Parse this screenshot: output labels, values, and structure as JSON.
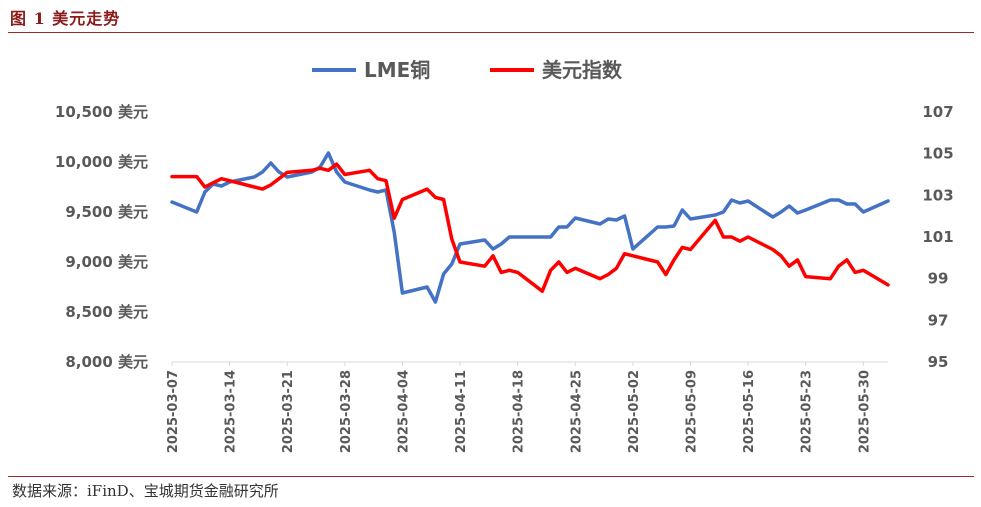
{
  "figure": {
    "title": "图 1 美元走势",
    "source": "数据来源：iFinD、宝城期货金融研究所"
  },
  "chart_data": {
    "type": "line",
    "legend_position": "top-center",
    "grid": false,
    "y_left": {
      "ylim": [
        8000,
        10500
      ],
      "ticks": [
        8000,
        8500,
        9000,
        9500,
        10000,
        10500
      ],
      "tick_labels": [
        "8,000 美元",
        "8,500 美元",
        "9,000 美元",
        "9,500 美元",
        "10,000 美元",
        "10,500 美元"
      ]
    },
    "y_right": {
      "ylim": [
        95,
        107
      ],
      "ticks": [
        95,
        97,
        99,
        101,
        103,
        105,
        107
      ],
      "tick_labels": [
        "95",
        "97",
        "99",
        "101",
        "103",
        "105",
        "107"
      ]
    },
    "x_range": [
      "2025-03-07",
      "2025-06-02"
    ],
    "x_tick_labels": [
      "2025-03-07",
      "2025-03-14",
      "2025-03-21",
      "2025-03-28",
      "2025-04-04",
      "2025-04-11",
      "2025-04-18",
      "2025-04-25",
      "2025-05-02",
      "2025-05-09",
      "2025-05-16",
      "2025-05-23",
      "2025-05-30"
    ],
    "series": [
      {
        "name": "LME铜",
        "axis": "left",
        "color": "#4472c4",
        "points": [
          [
            "2025-03-07",
            9600
          ],
          [
            "2025-03-10",
            9500
          ],
          [
            "2025-03-11",
            9700
          ],
          [
            "2025-03-12",
            9780
          ],
          [
            "2025-03-13",
            9760
          ],
          [
            "2025-03-14",
            9800
          ],
          [
            "2025-03-17",
            9850
          ],
          [
            "2025-03-18",
            9900
          ],
          [
            "2025-03-19",
            9990
          ],
          [
            "2025-03-20",
            9900
          ],
          [
            "2025-03-21",
            9850
          ],
          [
            "2025-03-24",
            9900
          ],
          [
            "2025-03-25",
            9950
          ],
          [
            "2025-03-26",
            10090
          ],
          [
            "2025-03-27",
            9900
          ],
          [
            "2025-03-28",
            9800
          ],
          [
            "2025-03-31",
            9720
          ],
          [
            "2025-04-01",
            9700
          ],
          [
            "2025-04-02",
            9720
          ],
          [
            "2025-04-03",
            9300
          ],
          [
            "2025-04-04",
            8690
          ],
          [
            "2025-04-07",
            8750
          ],
          [
            "2025-04-08",
            8600
          ],
          [
            "2025-04-09",
            8880
          ],
          [
            "2025-04-10",
            8980
          ],
          [
            "2025-04-11",
            9180
          ],
          [
            "2025-04-14",
            9220
          ],
          [
            "2025-04-15",
            9130
          ],
          [
            "2025-04-16",
            9180
          ],
          [
            "2025-04-17",
            9250
          ],
          [
            "2025-04-22",
            9250
          ],
          [
            "2025-04-23",
            9350
          ],
          [
            "2025-04-24",
            9350
          ],
          [
            "2025-04-25",
            9440
          ],
          [
            "2025-04-28",
            9380
          ],
          [
            "2025-04-29",
            9430
          ],
          [
            "2025-04-30",
            9420
          ],
          [
            "2025-05-01",
            9460
          ],
          [
            "2025-05-02",
            9130
          ],
          [
            "2025-05-05",
            9350
          ],
          [
            "2025-05-06",
            9350
          ],
          [
            "2025-05-07",
            9360
          ],
          [
            "2025-05-08",
            9520
          ],
          [
            "2025-05-09",
            9430
          ],
          [
            "2025-05-12",
            9470
          ],
          [
            "2025-05-13",
            9500
          ],
          [
            "2025-05-14",
            9620
          ],
          [
            "2025-05-15",
            9590
          ],
          [
            "2025-05-16",
            9610
          ],
          [
            "2025-05-19",
            9450
          ],
          [
            "2025-05-20",
            9500
          ],
          [
            "2025-05-21",
            9560
          ],
          [
            "2025-05-22",
            9490
          ],
          [
            "2025-05-23",
            9520
          ],
          [
            "2025-05-26",
            9620
          ],
          [
            "2025-05-27",
            9620
          ],
          [
            "2025-05-28",
            9580
          ],
          [
            "2025-05-29",
            9580
          ],
          [
            "2025-05-30",
            9500
          ],
          [
            "2025-06-02",
            9610
          ]
        ]
      },
      {
        "name": "美元指数",
        "axis": "right",
        "color": "#ff0000",
        "points": [
          [
            "2025-03-07",
            103.9
          ],
          [
            "2025-03-10",
            103.9
          ],
          [
            "2025-03-11",
            103.4
          ],
          [
            "2025-03-12",
            103.6
          ],
          [
            "2025-03-13",
            103.8
          ],
          [
            "2025-03-14",
            103.7
          ],
          [
            "2025-03-17",
            103.4
          ],
          [
            "2025-03-18",
            103.3
          ],
          [
            "2025-03-19",
            103.5
          ],
          [
            "2025-03-20",
            103.8
          ],
          [
            "2025-03-21",
            104.1
          ],
          [
            "2025-03-24",
            104.2
          ],
          [
            "2025-03-25",
            104.3
          ],
          [
            "2025-03-26",
            104.2
          ],
          [
            "2025-03-27",
            104.5
          ],
          [
            "2025-03-28",
            104.0
          ],
          [
            "2025-03-31",
            104.2
          ],
          [
            "2025-04-01",
            103.8
          ],
          [
            "2025-04-02",
            103.7
          ],
          [
            "2025-04-03",
            101.9
          ],
          [
            "2025-04-04",
            102.8
          ],
          [
            "2025-04-07",
            103.3
          ],
          [
            "2025-04-08",
            102.9
          ],
          [
            "2025-04-09",
            102.8
          ],
          [
            "2025-04-10",
            100.9
          ],
          [
            "2025-04-11",
            99.8
          ],
          [
            "2025-04-14",
            99.6
          ],
          [
            "2025-04-15",
            100.1
          ],
          [
            "2025-04-16",
            99.3
          ],
          [
            "2025-04-17",
            99.4
          ],
          [
            "2025-04-18",
            99.3
          ],
          [
            "2025-04-21",
            98.4
          ],
          [
            "2025-04-22",
            99.4
          ],
          [
            "2025-04-23",
            99.8
          ],
          [
            "2025-04-24",
            99.3
          ],
          [
            "2025-04-25",
            99.5
          ],
          [
            "2025-04-28",
            99.0
          ],
          [
            "2025-04-29",
            99.2
          ],
          [
            "2025-04-30",
            99.5
          ],
          [
            "2025-05-01",
            100.2
          ],
          [
            "2025-05-02",
            100.1
          ],
          [
            "2025-05-05",
            99.8
          ],
          [
            "2025-05-06",
            99.2
          ],
          [
            "2025-05-07",
            99.9
          ],
          [
            "2025-05-08",
            100.5
          ],
          [
            "2025-05-09",
            100.4
          ],
          [
            "2025-05-12",
            101.8
          ],
          [
            "2025-05-13",
            101.0
          ],
          [
            "2025-05-14",
            101.0
          ],
          [
            "2025-05-15",
            100.8
          ],
          [
            "2025-05-16",
            101.0
          ],
          [
            "2025-05-19",
            100.4
          ],
          [
            "2025-05-20",
            100.1
          ],
          [
            "2025-05-21",
            99.6
          ],
          [
            "2025-05-22",
            99.9
          ],
          [
            "2025-05-23",
            99.1
          ],
          [
            "2025-05-26",
            99.0
          ],
          [
            "2025-05-27",
            99.6
          ],
          [
            "2025-05-28",
            99.9
          ],
          [
            "2025-05-29",
            99.3
          ],
          [
            "2025-05-30",
            99.4
          ],
          [
            "2025-06-02",
            98.7
          ]
        ]
      }
    ]
  }
}
